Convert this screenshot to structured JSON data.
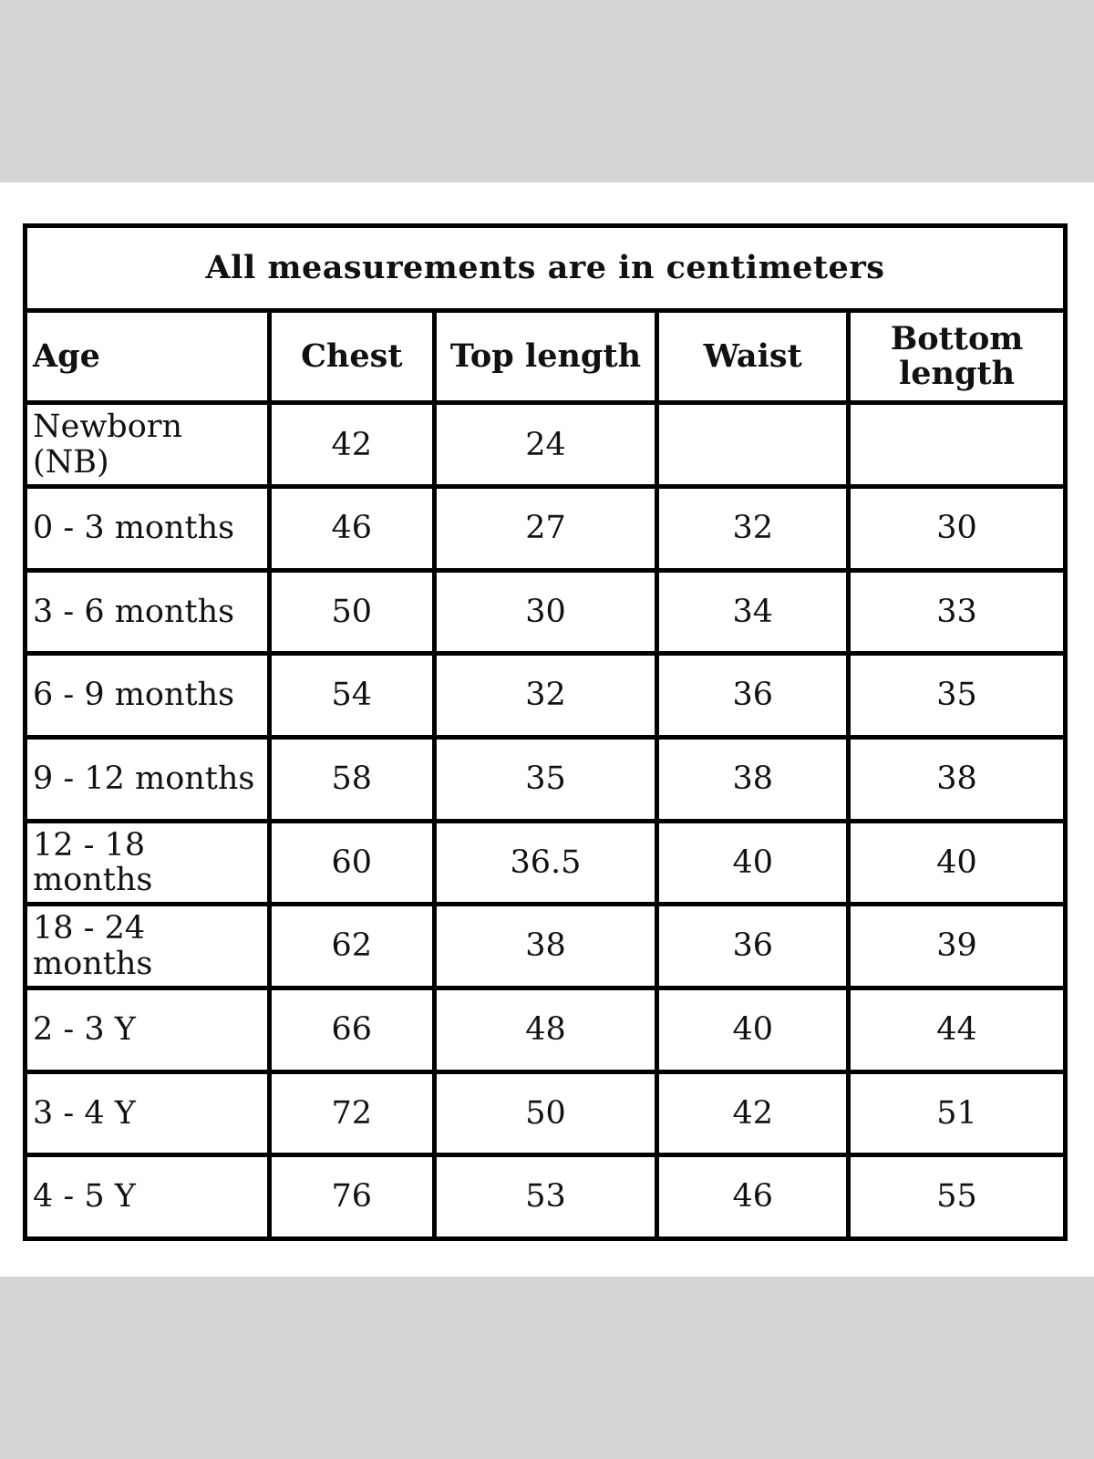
{
  "caption": "All measurements are in centimeters",
  "headers": {
    "age": "Age",
    "chest": "Chest",
    "top_length": "Top length",
    "waist": "Waist",
    "bottom_length": "Bottom length"
  },
  "rows": [
    {
      "age": "Newborn (NB)",
      "chest": "42",
      "top_length": "24",
      "waist": "",
      "bottom_length": ""
    },
    {
      "age": "0 - 3 months",
      "chest": "46",
      "top_length": "27",
      "waist": "32",
      "bottom_length": "30"
    },
    {
      "age": "3 - 6 months",
      "chest": "50",
      "top_length": "30",
      "waist": "34",
      "bottom_length": "33"
    },
    {
      "age": "6 - 9 months",
      "chest": "54",
      "top_length": "32",
      "waist": "36",
      "bottom_length": "35"
    },
    {
      "age": "9 - 12 months",
      "chest": "58",
      "top_length": "35",
      "waist": "38",
      "bottom_length": "38"
    },
    {
      "age": "12 - 18 months",
      "chest": "60",
      "top_length": "36.5",
      "waist": "40",
      "bottom_length": "40"
    },
    {
      "age": "18 - 24 months",
      "chest": "62",
      "top_length": "38",
      "waist": "36",
      "bottom_length": "39"
    },
    {
      "age": "2 - 3 Y",
      "chest": "66",
      "top_length": "48",
      "waist": "40",
      "bottom_length": "44"
    },
    {
      "age": "3 - 4 Y",
      "chest": "72",
      "top_length": "50",
      "waist": "42",
      "bottom_length": "51"
    },
    {
      "age": "4 - 5 Y",
      "chest": "76",
      "top_length": "53",
      "waist": "46",
      "bottom_length": "55"
    }
  ],
  "colors": {
    "background": "#d5d7d4",
    "sheet": "#ffffff",
    "border": "#000000",
    "text": "#111111"
  }
}
